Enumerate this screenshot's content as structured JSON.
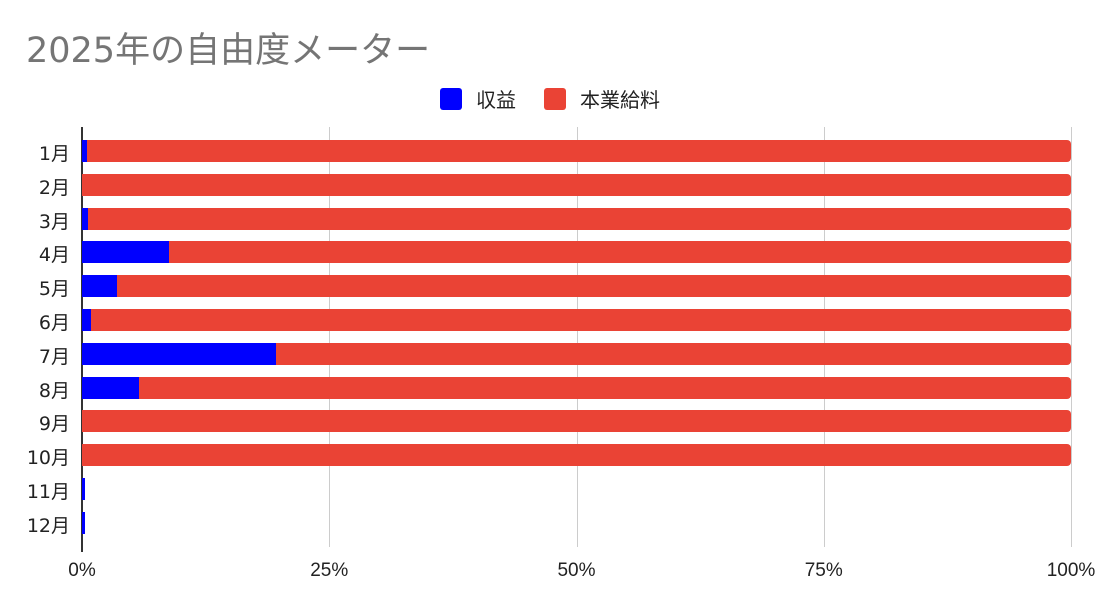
{
  "chart_data": {
    "type": "bar",
    "orientation": "horizontal",
    "stacked": "percent",
    "title": "2025年の自由度メーター",
    "xlabel": "",
    "ylabel": "",
    "categories": [
      "1月",
      "2月",
      "3月",
      "4月",
      "5月",
      "6月",
      "7月",
      "8月",
      "9月",
      "10月",
      "11月",
      "12月"
    ],
    "series": [
      {
        "name": "収益",
        "color": "#0000ff",
        "values": [
          0.5,
          0,
          0.6,
          8.8,
          3.5,
          0.9,
          19.6,
          5.8,
          0,
          0,
          0.3,
          0.3
        ]
      },
      {
        "name": "本業給料",
        "color": "#ea4335",
        "values": [
          99.5,
          100,
          99.4,
          91.2,
          96.5,
          99.1,
          80.4,
          94.2,
          100,
          100,
          0,
          0
        ]
      }
    ],
    "xticks": [
      "0%",
      "25%",
      "50%",
      "75%",
      "100%"
    ],
    "xlim": [
      0,
      100
    ],
    "grid": true,
    "legend_position": "top"
  },
  "legend": [
    {
      "label": "収益",
      "color": "#0000ff"
    },
    {
      "label": "本業給料",
      "color": "#ea4335"
    }
  ]
}
